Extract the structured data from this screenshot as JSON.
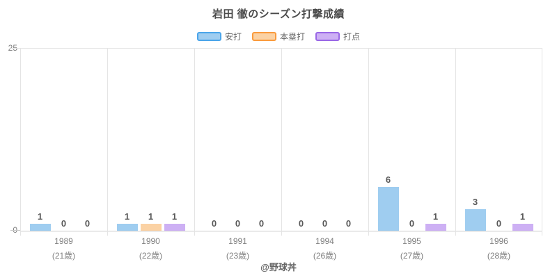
{
  "title": "岩田 徹のシーズン打撃成績",
  "footer": "@野球丼",
  "colors": {
    "hits_fill": "#9FCDF0",
    "hits_border": "#4BA5EA",
    "homerun_fill": "#FBD2A4",
    "homerun_border": "#FA9B3D",
    "rbi_fill": "#CDB0F4",
    "rbi_border": "#9A68E6",
    "grid_line": "#E4E4E4",
    "axis_line": "#C9C9C9",
    "title_text": "#4A4A4A",
    "value_label_text": "#595959",
    "tick_text": "#808080",
    "legend_text": "#666666"
  },
  "chart_data": {
    "type": "bar",
    "title": "岩田 徹のシーズン打撃成績",
    "categories": [
      "1989",
      "1990",
      "1991",
      "1994",
      "1995",
      "1996"
    ],
    "category_sublabels": [
      "(21歳)",
      "(22歳)",
      "(23歳)",
      "(26歳)",
      "(27歳)",
      "(28歳)"
    ],
    "series": [
      {
        "name": "安打",
        "values": [
          1,
          1,
          0,
          0,
          6,
          3
        ],
        "fill": "#9FCDF0",
        "border": "#4BA5EA"
      },
      {
        "name": "本塁打",
        "values": [
          0,
          1,
          0,
          0,
          0,
          0
        ],
        "fill": "#FBD2A4",
        "border": "#FA9B3D"
      },
      {
        "name": "打点",
        "values": [
          0,
          1,
          0,
          0,
          1,
          1
        ],
        "fill": "#CDB0F4",
        "border": "#9A68E6"
      }
    ],
    "xlabel": "",
    "ylabel": "",
    "ylim": [
      0,
      25
    ],
    "yticks": [
      0,
      25
    ],
    "grid": "vertical group separators + top gridline",
    "legend_position": "top",
    "value_labels": "shown above each bar"
  }
}
